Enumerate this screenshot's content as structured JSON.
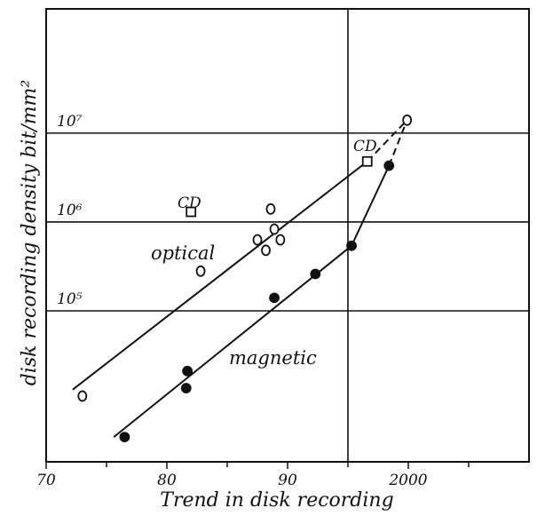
{
  "chart_data": {
    "type": "scatter",
    "xlabel": "Trend in disk recording",
    "ylabel": "disk recording density bit/mm²",
    "xlim": [
      1970,
      2010
    ],
    "xticks": [
      {
        "value": 1970,
        "label": "70"
      },
      {
        "value": 1980,
        "label": "80"
      },
      {
        "value": 1990,
        "label": "90"
      },
      2000
    ],
    "xminor": [
      1975,
      1985,
      1995,
      2005
    ],
    "ylim": [
      2000,
      250000000
    ],
    "ylog": true,
    "yticks": [
      {
        "value": 100000,
        "label": "10⁵"
      },
      {
        "value": 1000000,
        "label": "10⁶"
      },
      {
        "value": 10000000,
        "label": "10⁷"
      }
    ],
    "grid": true,
    "vlines": [
      1995
    ],
    "color": "#111",
    "series": [
      {
        "name": "optical",
        "marker": "open-circle",
        "x": [
          1973.0,
          1982.8,
          1988.6,
          1987.5,
          1988.2,
          1988.9,
          1989.4,
          1999.9
        ],
        "values": [
          11000,
          280000,
          1400000,
          630000,
          480000,
          830000,
          630000,
          14000000
        ]
      },
      {
        "name": "CD",
        "marker": "square",
        "x": [
          1982.0,
          1996.6
        ],
        "values": [
          1300000,
          4800000
        ]
      },
      {
        "name": "magnetic",
        "marker": "filled-circle",
        "x": [
          1976.5,
          1981.6,
          1981.7,
          1988.9,
          1992.3,
          1995.3,
          1998.4
        ],
        "values": [
          3800,
          13500,
          21000,
          140000,
          260000,
          540000,
          4300000
        ]
      }
    ],
    "lines": [
      {
        "style": "solid",
        "x": [
          1972.2,
          1996.6
        ],
        "values": [
          13000,
          4800000
        ]
      },
      {
        "style": "dashed",
        "x": [
          1996.6,
          1999.9
        ],
        "values": [
          4800000,
          14000000
        ]
      },
      {
        "style": "solid",
        "x": [
          1975.6,
          1995.3,
          1998.4
        ],
        "values": [
          3800,
          540000,
          4300000
        ]
      },
      {
        "style": "dashed",
        "x": [
          1998.4,
          1999.9
        ],
        "values": [
          4300000,
          14000000
        ]
      }
    ],
    "annotations": [
      "optical",
      "magnetic",
      "CD",
      "CD"
    ]
  }
}
